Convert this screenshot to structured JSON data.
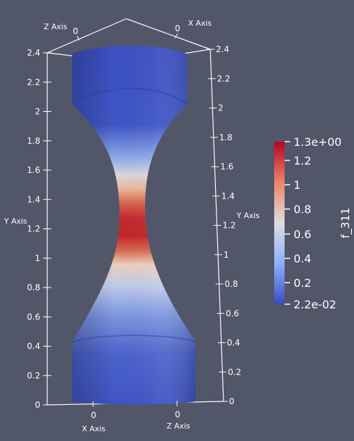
{
  "scene": {
    "background": "#525669",
    "foreground": "#ffffff"
  },
  "axes": {
    "left_y": {
      "title": "Y Axis",
      "ticks": [
        "0",
        "0.2",
        "0.4",
        "0.6",
        "0.8",
        "1",
        "1.2",
        "1.4",
        "1.6",
        "1.8",
        "2",
        "2.2",
        "2.4"
      ]
    },
    "right_y": {
      "title": "Y Axis",
      "ticks": [
        "0",
        "0.2",
        "0.4",
        "0.6",
        "0.8",
        "1",
        "1.2",
        "1.4",
        "1.6",
        "1.8",
        "2",
        "2.2",
        "2.4"
      ]
    },
    "bottom_x": {
      "title": "X Axis",
      "tick": "0"
    },
    "bottom_z": {
      "title": "Z Axis",
      "tick": "0"
    },
    "top_x": {
      "title": "X Axis",
      "tick": "0"
    },
    "top_z": {
      "title": "Z Axis",
      "tick": "0"
    }
  },
  "colorbar": {
    "title": "f_311",
    "ticks": [
      "1.3e+00",
      "1.2",
      "1",
      "0.8",
      "0.6",
      "0.4",
      "0.2",
      "2.2e-02"
    ],
    "colors": {
      "low": "#3b4cc0",
      "mid": "#dddddd",
      "high": "#b40426"
    }
  }
}
